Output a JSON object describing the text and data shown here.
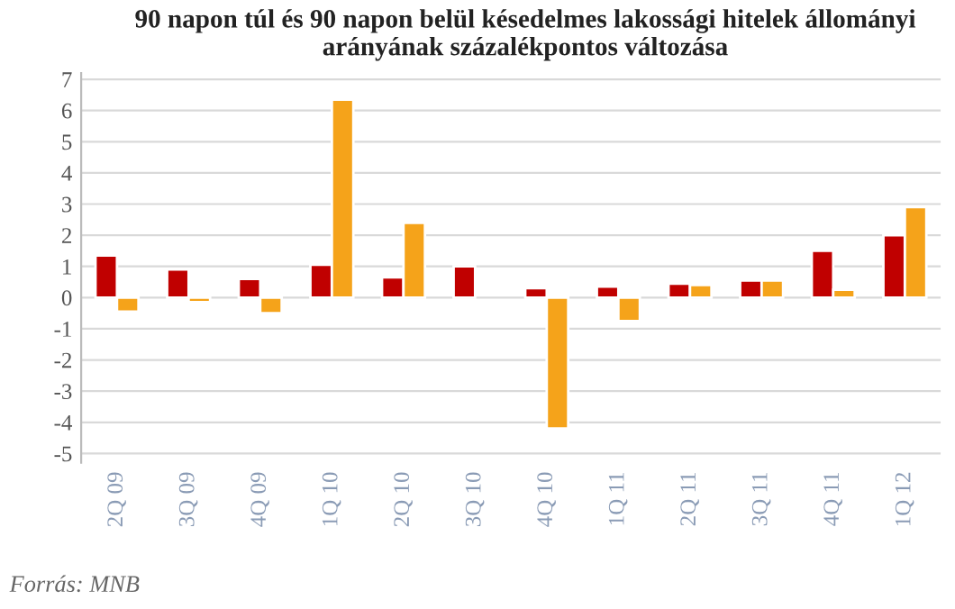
{
  "chart_data": {
    "type": "bar",
    "title": "90 napon túl és 90 napon belül késedelmes lakossági hitelek állományi arányának százalékpontos változása",
    "categories": [
      "2Q 09",
      "3Q 09",
      "4Q 09",
      "1Q 10",
      "2Q 10",
      "3Q 10",
      "4Q 10",
      "1Q 11",
      "2Q 11",
      "3Q 11",
      "4Q 11",
      "1Q 12"
    ],
    "series": [
      {
        "color": "#c00000",
        "values": [
          1.35,
          0.9,
          0.6,
          1.05,
          0.65,
          1.0,
          0.3,
          0.35,
          0.45,
          0.55,
          1.5,
          2.0
        ]
      },
      {
        "color": "#f5a31a",
        "values": [
          -0.45,
          -0.15,
          -0.5,
          6.35,
          2.4,
          null,
          -4.2,
          -0.75,
          0.4,
          0.55,
          0.25,
          2.9
        ]
      }
    ],
    "ylim": [
      -5.3,
      7.2
    ],
    "yticks": [
      -5,
      -4,
      -3,
      -2,
      -1,
      0,
      1,
      2,
      3,
      4,
      5,
      6,
      7
    ],
    "grid": "y",
    "annotations": [
      "Forrás: MNB"
    ]
  }
}
